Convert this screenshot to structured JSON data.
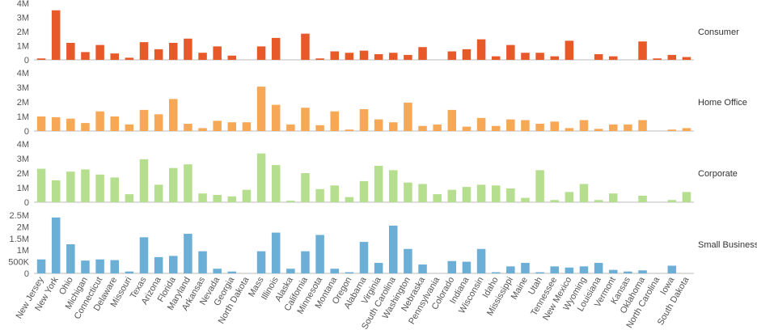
{
  "chart_data": {
    "type": "bar",
    "categories": [
      "New Jersey",
      "New York",
      "Ohio",
      "Michigan",
      "Connecticut",
      "Delaware",
      "Missouri",
      "Texas",
      "Arizona",
      "Florida",
      "Maryland",
      "Arkansas",
      "Nevada",
      "Georgia",
      "North Dakota",
      "Mass",
      "Illinois",
      "Alaska",
      "California",
      "Minnesota",
      "Montana",
      "Oregon",
      "Alabama",
      "Virginia",
      "South Carolina",
      "Washington",
      "Nebraska",
      "Pennsylvania",
      "Colorado",
      "Indiana",
      "Wisconsin",
      "Idaho",
      "Mississippi",
      "Maine",
      "Utah",
      "Tennessee",
      "New Mexico",
      "Wyoming",
      "Louisiana",
      "Vermont",
      "Kansas",
      "Oklahoma",
      "North Carolina",
      "Iowa",
      "South Dakota"
    ],
    "series": [
      {
        "name": "Consumer",
        "color": "#e8592a",
        "ylim": [
          0,
          4000000
        ],
        "ticks": [
          {
            "value": 0,
            "label": "0"
          },
          {
            "value": 1000000,
            "label": "1M"
          },
          {
            "value": 2000000,
            "label": "2M"
          },
          {
            "value": 3000000,
            "label": "3M"
          },
          {
            "value": 4000000,
            "label": "4M"
          }
        ],
        "values": [
          100000,
          3500000,
          1200000,
          550000,
          1050000,
          450000,
          150000,
          1250000,
          750000,
          1200000,
          1500000,
          500000,
          950000,
          300000,
          0,
          950000,
          1550000,
          0,
          1850000,
          100000,
          600000,
          500000,
          650000,
          400000,
          500000,
          350000,
          900000,
          0,
          600000,
          750000,
          1450000,
          250000,
          1050000,
          500000,
          500000,
          250000,
          1350000,
          0,
          400000,
          250000,
          0,
          1300000,
          100000,
          350000,
          200000
        ]
      },
      {
        "name": "Home Office",
        "color": "#f7a857",
        "ylim": [
          0,
          4000000
        ],
        "ticks": [
          {
            "value": 0,
            "label": "0"
          },
          {
            "value": 1000000,
            "label": "1M"
          },
          {
            "value": 2000000,
            "label": "2M"
          },
          {
            "value": 3000000,
            "label": "3M"
          },
          {
            "value": 4000000,
            "label": "4M"
          }
        ],
        "values": [
          1000000,
          950000,
          850000,
          550000,
          1350000,
          1000000,
          450000,
          1450000,
          1150000,
          2200000,
          500000,
          200000,
          700000,
          600000,
          600000,
          3050000,
          1800000,
          450000,
          1600000,
          400000,
          1350000,
          100000,
          1500000,
          800000,
          600000,
          1950000,
          350000,
          450000,
          1450000,
          300000,
          900000,
          350000,
          800000,
          750000,
          500000,
          650000,
          200000,
          750000,
          150000,
          450000,
          450000,
          750000,
          0,
          100000,
          200000
        ]
      },
      {
        "name": "Corporate",
        "color": "#b5de8e",
        "ylim": [
          0,
          4000000
        ],
        "ticks": [
          {
            "value": 0,
            "label": "0"
          },
          {
            "value": 1000000,
            "label": "1M"
          },
          {
            "value": 2000000,
            "label": "2M"
          },
          {
            "value": 3000000,
            "label": "3M"
          },
          {
            "value": 4000000,
            "label": "4M"
          }
        ],
        "values": [
          2300000,
          1500000,
          2100000,
          2250000,
          1900000,
          1700000,
          550000,
          2950000,
          1200000,
          2350000,
          2600000,
          600000,
          500000,
          400000,
          850000,
          3350000,
          2550000,
          100000,
          2000000,
          900000,
          1150000,
          350000,
          1450000,
          2500000,
          2200000,
          1350000,
          1250000,
          550000,
          850000,
          1050000,
          1200000,
          1150000,
          950000,
          300000,
          2200000,
          150000,
          700000,
          1250000,
          150000,
          600000,
          0,
          450000,
          0,
          150000,
          700000
        ]
      },
      {
        "name": "Small Business",
        "color": "#6baed6",
        "ylim": [
          0,
          2500000
        ],
        "ticks": [
          {
            "value": 0,
            "label": "0"
          },
          {
            "value": 500000,
            "label": "500K"
          },
          {
            "value": 1000000,
            "label": "1M"
          },
          {
            "value": 1500000,
            "label": "1.5M"
          },
          {
            "value": 2000000,
            "label": "2M"
          },
          {
            "value": 2500000,
            "label": "2.5M"
          }
        ],
        "values": [
          600000,
          2400000,
          1250000,
          550000,
          600000,
          570000,
          80000,
          1550000,
          700000,
          750000,
          1700000,
          950000,
          200000,
          80000,
          0,
          950000,
          1750000,
          200000,
          950000,
          1650000,
          200000,
          50000,
          1350000,
          450000,
          2050000,
          1050000,
          380000,
          0,
          530000,
          500000,
          1050000,
          50000,
          300000,
          450000,
          50000,
          300000,
          250000,
          300000,
          450000,
          150000,
          80000,
          130000,
          0,
          330000,
          0
        ]
      }
    ]
  }
}
